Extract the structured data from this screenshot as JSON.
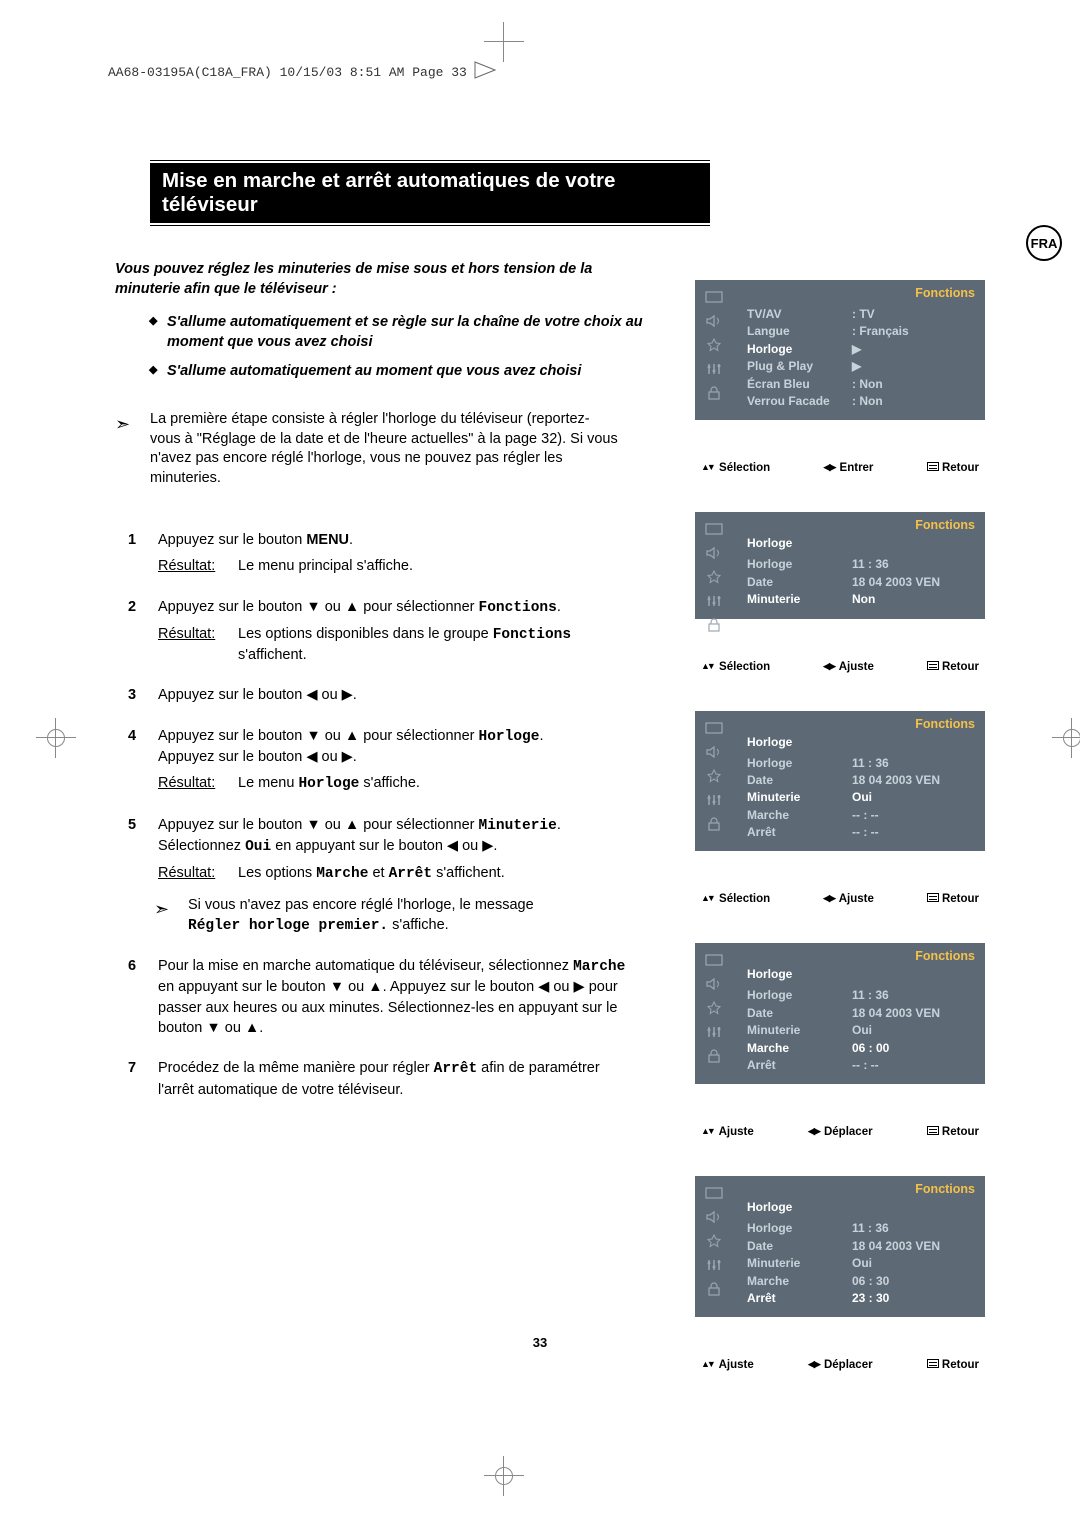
{
  "header_line": "AA68-03195A(C18A_FRA)  10/15/03  8:51 AM  Page 33",
  "badge": "FRA",
  "title": "Mise en marche et arrêt automatiques de votre téléviseur",
  "intro_lead": "Vous pouvez réglez les minuteries de mise sous et hors tension de la minuterie afin que le téléviseur :",
  "intro_bullets": [
    "S'allume automatiquement et se règle sur la chaîne de votre choix au moment que vous avez choisi",
    "S'allume automatiquement au moment que vous avez choisi"
  ],
  "first_step": "La première étape consiste à régler l'horloge du téléviseur (reportez-vous à \"Réglage de la date et de l'heure actuelles\" à la page 32). Si vous n'avez pas encore réglé l'horloge, vous ne pouvez pas régler les minuteries.",
  "steps": {
    "s1": {
      "body_a": "Appuyez sur le bouton ",
      "menu": "MENU",
      "body_b": ".",
      "result_label": "Résultat:",
      "result": "Le menu principal s'affiche."
    },
    "s2": {
      "body": "Appuyez sur le bouton ▼ ou ▲ pour sélectionner ",
      "mono": "Fonctions",
      "result_label": "Résultat:",
      "result_a": "Les options disponibles dans le groupe ",
      "result_mono": "Fonctions",
      "result_b": " s'affichent."
    },
    "s3": {
      "body": "Appuyez sur le bouton ◀ ou ▶."
    },
    "s4": {
      "line1_a": "Appuyez sur le bouton ▼ ou ▲ pour sélectionner ",
      "line1_mono": "Horloge",
      "line1_b": ".",
      "line2": "Appuyez sur le bouton ◀ ou ▶.",
      "result_label": "Résultat:",
      "result_a": "Le menu ",
      "result_mono": "Horloge",
      "result_b": " s'affiche."
    },
    "s5": {
      "line1_a": "Appuyez sur le bouton ▼ ou ▲ pour sélectionner ",
      "line1_mono": "Minuterie",
      "line1_b": ".",
      "line2_a": "Sélectionnez ",
      "line2_mono": "Oui",
      "line2_b": " en appuyant sur le bouton ◀ ou ▶.",
      "result_label": "Résultat:",
      "result_a": "Les options ",
      "result_mono1": "Marche",
      "result_mid": " et ",
      "result_mono2": "Arrêt",
      "result_b": " s'affichent.",
      "note_a": "Si vous n'avez pas encore réglé l'horloge, le message ",
      "note_mono": "Régler horloge premier.",
      "note_b": " s'affiche."
    },
    "s6": {
      "line1": "Pour la mise en marche automatique du téléviseur, sélectionnez ",
      "line1_mono": "Marche",
      "line1_b": " en appuyant sur le bouton ▼ ou ▲. Appuyez sur le bouton ◀ ou ▶ pour passer aux heures ou aux minutes. Sélectionnez-les en appuyant sur le bouton ▼ ou ▲."
    },
    "s7": {
      "line_a": "Procédez de la même manière pour régler ",
      "line_mono": "Arrêt",
      "line_b": " afin de paramétrer l'arrêt automatique de votre téléviseur."
    }
  },
  "osd": [
    {
      "title": "Fonctions",
      "rows": [
        {
          "k": "TV/AV",
          "v": ": TV"
        },
        {
          "k": "Langue",
          "v": ": Français"
        },
        {
          "k": "Horloge",
          "v": "▶",
          "hl_k": true
        },
        {
          "k": "Plug & Play",
          "v": "▶"
        },
        {
          "k": "Écran Bleu",
          "v": ": Non"
        },
        {
          "k": "Verrou Facade",
          "v": ": Non"
        }
      ],
      "foot": {
        "a": "Sélection",
        "b": "Entrer",
        "c": "Retour",
        "mode": "entrer"
      }
    },
    {
      "title": "Fonctions",
      "sub": "Horloge",
      "rows": [
        {
          "k": "Horloge",
          "v": "11 : 36"
        },
        {
          "k": "Date",
          "v": "18 04 2003 VEN"
        },
        {
          "k": "Minuterie",
          "v": "Non",
          "hl_k": true,
          "hl_v": true
        }
      ],
      "foot": {
        "a": "Sélection",
        "b": "Ajuste",
        "c": "Retour",
        "mode": "ajuste"
      }
    },
    {
      "title": "Fonctions",
      "sub": "Horloge",
      "rows": [
        {
          "k": "Horloge",
          "v": "11 : 36"
        },
        {
          "k": "Date",
          "v": "18 04 2003 VEN"
        },
        {
          "k": "Minuterie",
          "v": "Oui",
          "hl_k": true,
          "hl_v": true
        },
        {
          "k": "Marche",
          "v": "-- : --"
        },
        {
          "k": "Arrêt",
          "v": "-- : --"
        }
      ],
      "foot": {
        "a": "Sélection",
        "b": "Ajuste",
        "c": "Retour",
        "mode": "ajuste"
      }
    },
    {
      "title": "Fonctions",
      "sub": "Horloge",
      "rows": [
        {
          "k": "Horloge",
          "v": "11 : 36"
        },
        {
          "k": "Date",
          "v": "18 04 2003 VEN"
        },
        {
          "k": "Minuterie",
          "v": "Oui"
        },
        {
          "k": "Marche",
          "v": "06 : 00",
          "hl_k": true,
          "hl_v": true
        },
        {
          "k": "Arrêt",
          "v": "-- : --"
        }
      ],
      "foot": {
        "a": "Ajuste",
        "b": "Déplacer",
        "c": "Retour",
        "mode": "deplacer"
      }
    },
    {
      "title": "Fonctions",
      "sub": "Horloge",
      "rows": [
        {
          "k": "Horloge",
          "v": "11 : 36"
        },
        {
          "k": "Date",
          "v": "18 04 2003 VEN"
        },
        {
          "k": "Minuterie",
          "v": "Oui"
        },
        {
          "k": "Marche",
          "v": "06 : 30"
        },
        {
          "k": "Arrêt",
          "v": "23 : 30",
          "hl_k": true,
          "hl_v": true
        }
      ],
      "foot": {
        "a": "Ajuste",
        "b": "Déplacer",
        "c": "Retour",
        "mode": "deplacer"
      }
    }
  ],
  "page_number": "33",
  "colors": {
    "osd_bg": "#5d6a76",
    "osd_text": "#c9d2da",
    "osd_title": "#f4c04a",
    "osd_hl": "#ffffff"
  }
}
